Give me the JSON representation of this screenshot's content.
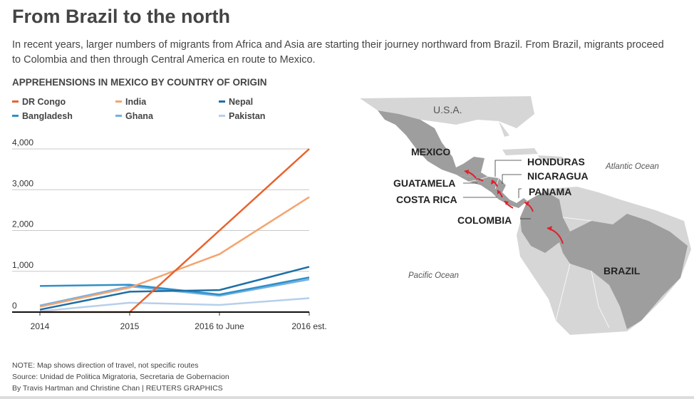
{
  "title": "From Brazil to the north",
  "description": "In recent years, larger numbers of migrants from Africa and Asia are starting their journey northward from Brazil. From Brazil, migrants proceed to Colombia and then through Central America en route to Mexico.",
  "chart_data": {
    "type": "line",
    "title": "APPREHENSIONS IN MEXICO BY COUNTRY OF ORIGIN",
    "categories": [
      "2014",
      "2015",
      "2016 to June",
      "2016 est."
    ],
    "ylim": [
      0,
      4000
    ],
    "yticks": [
      "0",
      "1,000",
      "2,000",
      "3,000",
      "4,000"
    ],
    "ytick_values": [
      0,
      1000,
      2000,
      3000,
      4000
    ],
    "grid": true,
    "legend_position": "top",
    "series": [
      {
        "name": "DR Congo",
        "color": "#e8622c",
        "values": [
          0,
          0,
          2000,
          4000
        ]
      },
      {
        "name": "India",
        "color": "#f4a470",
        "values": [
          130,
          600,
          1420,
          2820
        ]
      },
      {
        "name": "Nepal",
        "color": "#1d6fa5",
        "values": [
          60,
          500,
          540,
          1110
        ]
      },
      {
        "name": "Bangladesh",
        "color": "#2f8fc8",
        "values": [
          640,
          670,
          430,
          850
        ]
      },
      {
        "name": "Ghana",
        "color": "#72b1e2",
        "values": [
          160,
          630,
          400,
          800
        ]
      },
      {
        "name": "Pakistan",
        "color": "#b7cfeb",
        "values": [
          20,
          230,
          175,
          340
        ]
      }
    ]
  },
  "map": {
    "labels": {
      "usa": "U.S.A.",
      "mexico": "MEXICO",
      "honduras": "HONDURAS",
      "nicaragua": "NICARAGUA",
      "guatemala": "GUATAMELA",
      "panama": "PANAMA",
      "costa_rica": "COSTA RICA",
      "colombia": "COLOMBIA",
      "brazil": "BRAZIL",
      "atlantic": "Atlantic Ocean",
      "pacific": "Pacific Ocean"
    },
    "arrow_color": "#e0202c",
    "highlight_color": "#9e9e9e",
    "land_color": "#d6d6d6"
  },
  "notes": {
    "note": "NOTE: Map shows direction of travel, not specific routes",
    "source": "Source: Unidad de Politica Migratoria, Secretaria de Gobernacion",
    "credit": "By Travis Hartman and Christine Chan | REUTERS GRAPHICS"
  }
}
